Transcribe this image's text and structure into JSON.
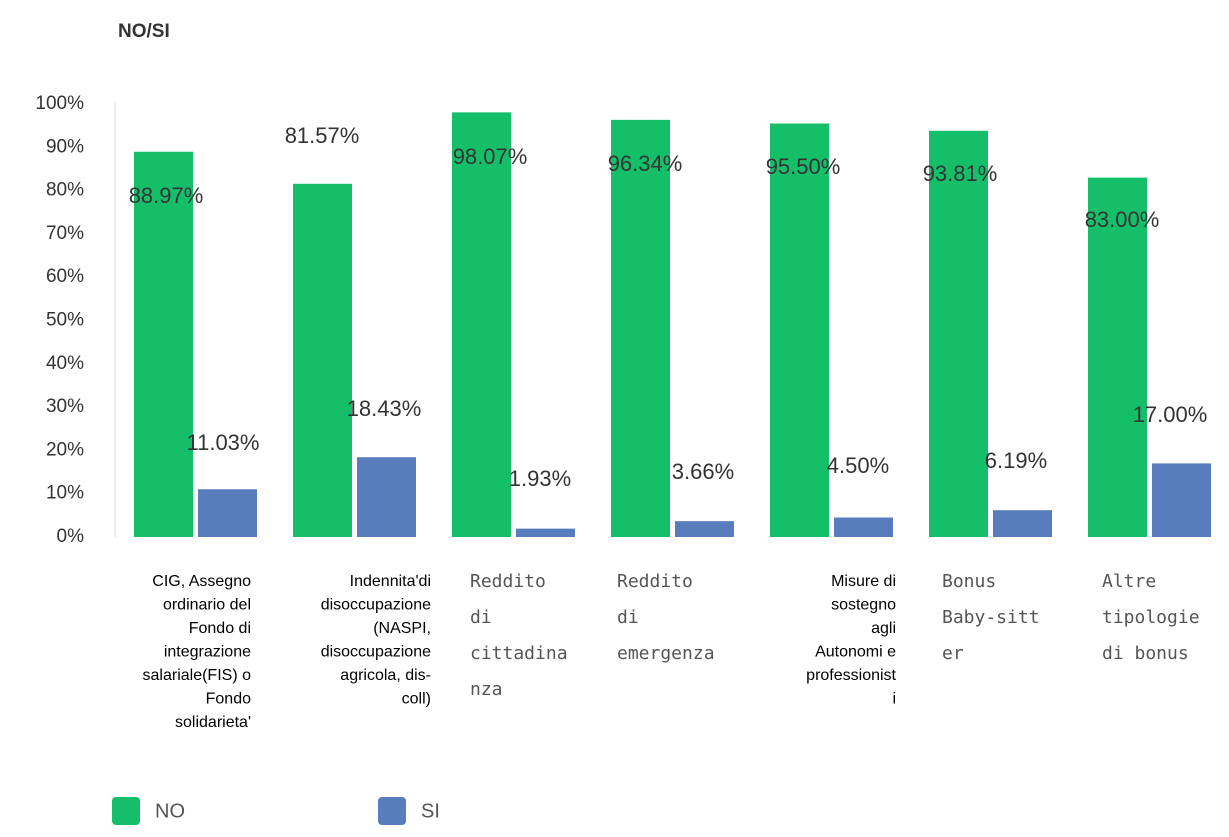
{
  "chart_data": {
    "type": "bar",
    "title": "NO/SI",
    "categories": [
      [
        "CIG, Assegno",
        "ordinario del",
        "Fondo di",
        "integrazione",
        "salariale(FIS) o",
        "Fondo",
        "solidarieta'"
      ],
      [
        "Indennita'di",
        "disoccupazione",
        "(NASPI,",
        "disoccupazione",
        "agricola, dis-",
        "coll)"
      ],
      [
        "Reddito",
        "di",
        "cittadina",
        "nza"
      ],
      [
        "Reddito",
        "di",
        "emergenza"
      ],
      [
        "Misure di",
        "sostegno",
        "agli",
        "Autonomi e",
        "professionist",
        "i"
      ],
      [
        "Bonus",
        "Baby-sitt",
        "er"
      ],
      [
        "Altre",
        "tipologie",
        "di bonus"
      ]
    ],
    "series": [
      {
        "name": "NO",
        "color": "#15bf69",
        "values": [
          88.97,
          81.57,
          98.07,
          96.34,
          95.5,
          93.81,
          83.0
        ],
        "value_labels": [
          "88.97%",
          "81.57%",
          "98.07%",
          "96.34%",
          "95.50%",
          "93.81%",
          "83.00%"
        ]
      },
      {
        "name": "SI",
        "color": "#587dbd",
        "values": [
          11.03,
          18.43,
          1.93,
          3.66,
          4.5,
          6.19,
          17.0
        ],
        "value_labels": [
          "11.03%",
          "18.43%",
          "1.93%",
          "3.66%",
          "4.50%",
          "6.19%",
          "17.00%"
        ]
      }
    ],
    "ylim": [
      0,
      100
    ],
    "yticks": [
      {
        "value": 0,
        "label": "0%"
      },
      {
        "value": 10,
        "label": "10%"
      },
      {
        "value": 20,
        "label": "20%"
      },
      {
        "value": 30,
        "label": "30%"
      },
      {
        "value": 40,
        "label": "40%"
      },
      {
        "value": 50,
        "label": "50%"
      },
      {
        "value": 60,
        "label": "60%"
      },
      {
        "value": 70,
        "label": "70%"
      },
      {
        "value": 80,
        "label": "80%"
      },
      {
        "value": 90,
        "label": "90%"
      },
      {
        "value": 100,
        "label": "100%"
      }
    ]
  }
}
